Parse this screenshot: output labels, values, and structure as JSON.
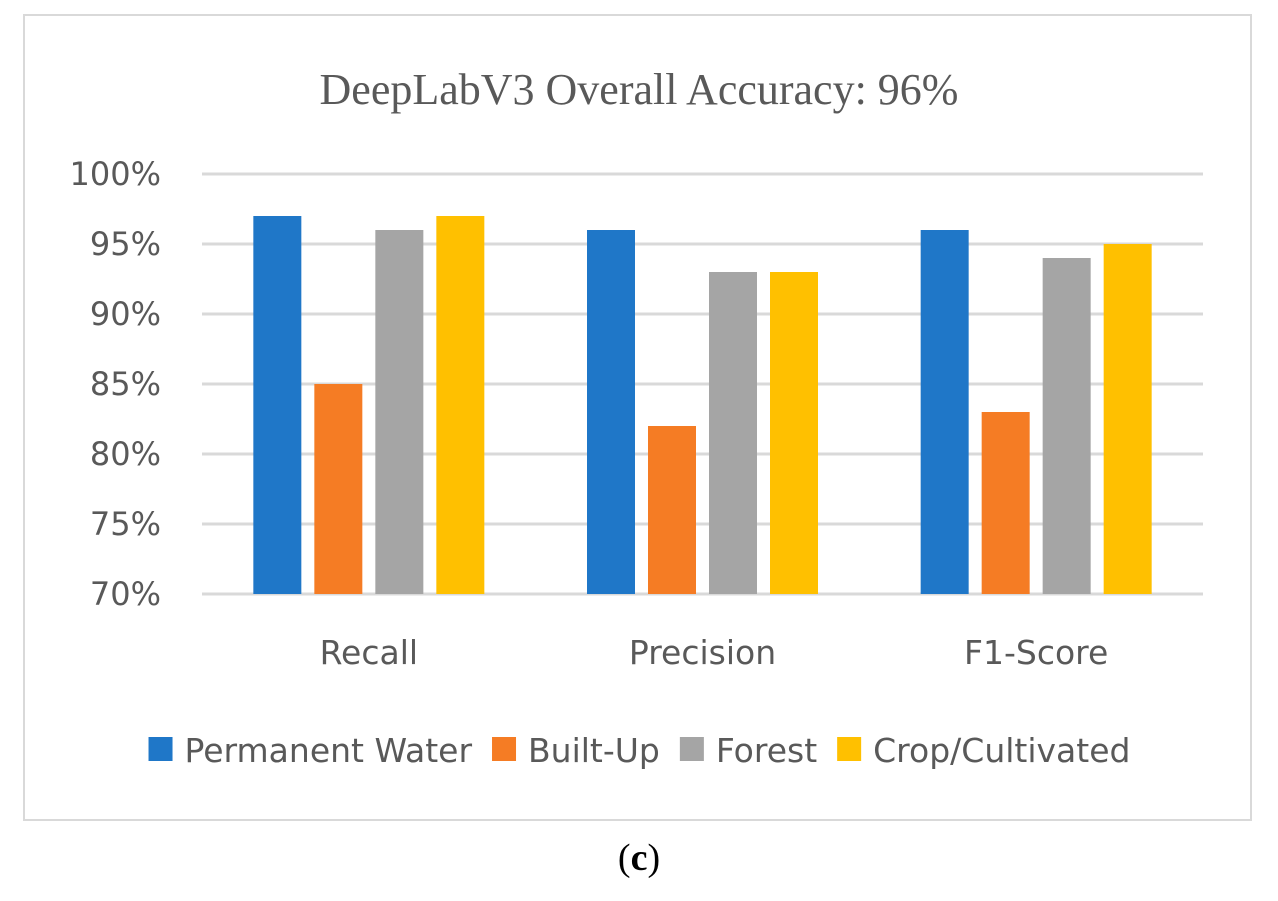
{
  "chart_data": {
    "type": "bar",
    "title": "DeepLabV3 Overall Accuracy: 96%",
    "categories": [
      "Recall",
      "Precision",
      "F1-Score"
    ],
    "series": [
      {
        "name": "Permanent Water",
        "color": "#1f77c8",
        "values": [
          97,
          96,
          96
        ]
      },
      {
        "name": "Built-Up",
        "color": "#f57c24",
        "values": [
          85,
          82,
          83
        ]
      },
      {
        "name": "Forest",
        "color": "#a5a5a5",
        "values": [
          96,
          93,
          94
        ]
      },
      {
        "name": "Crop/Cultivated",
        "color": "#ffc000",
        "values": [
          97,
          93,
          95
        ]
      }
    ],
    "ylim": [
      70,
      100
    ],
    "ytick_step": 5,
    "ytick_labels": [
      "70%",
      "75%",
      "80%",
      "85%",
      "90%",
      "95%",
      "100%"
    ],
    "xlabel": "",
    "ylabel": "",
    "grid": true,
    "legend_position": "bottom"
  },
  "caption": {
    "open": "(",
    "letter": "c",
    "close": ")"
  },
  "colors": {
    "grid": "#d9d9d9",
    "text": "#595959"
  }
}
